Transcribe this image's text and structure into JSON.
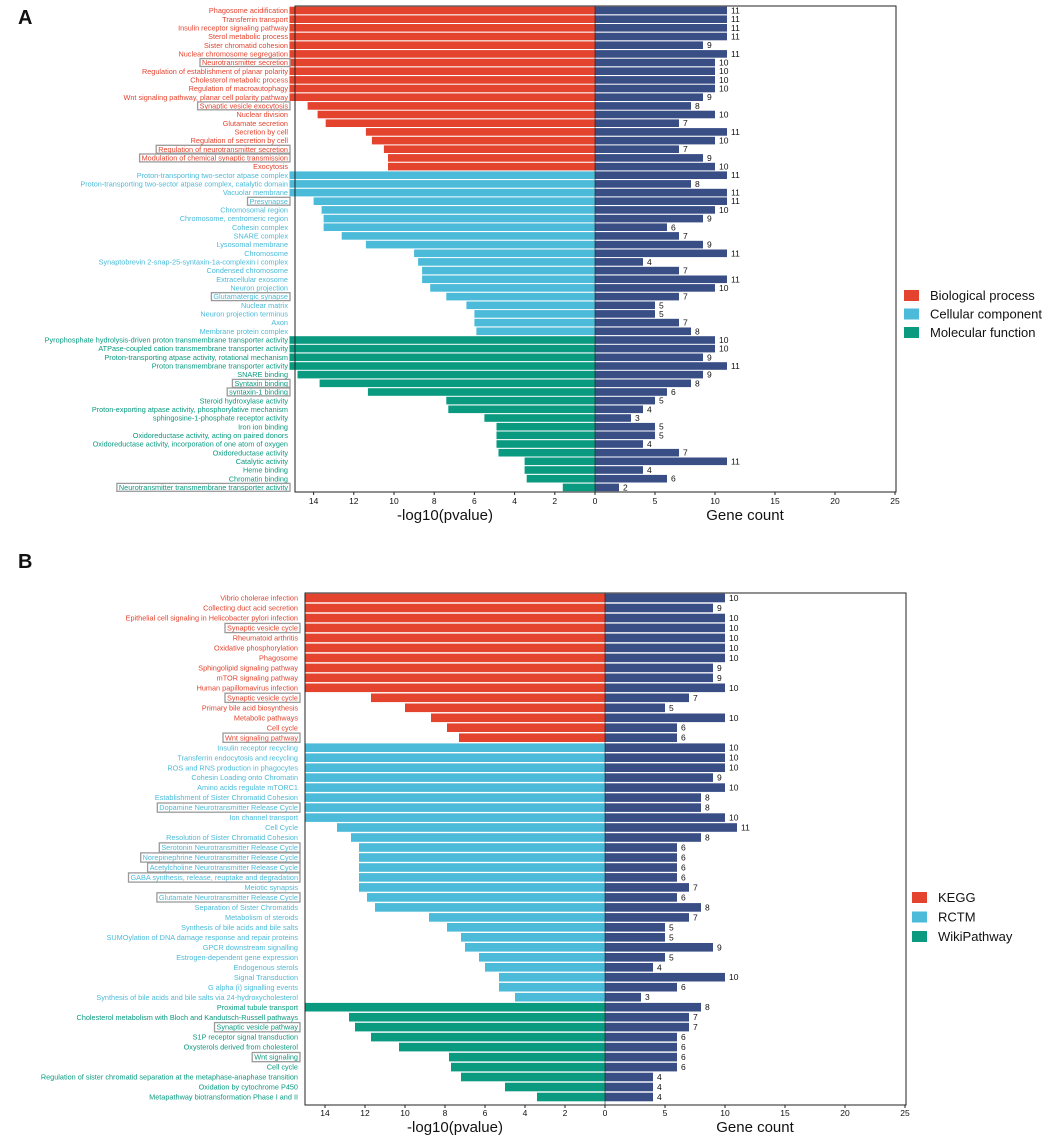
{
  "colors": {
    "bp": "#E4432E",
    "cc": "#4BBBD9",
    "mf": "#0A9A7F",
    "count": "#3A4E86",
    "box": "#9A9A9A",
    "axis": "#222222",
    "text": "#111111"
  },
  "chart_data": [
    {
      "type": "bar",
      "panel_label": "A",
      "xlabel_left": "-log10(pvalue)",
      "xlabel_right": "Gene count",
      "left_ticks": [
        "14",
        "12",
        "10",
        "8",
        "6",
        "4",
        "2",
        "0"
      ],
      "right_ticks": [
        "0",
        "5",
        "10",
        "15",
        "20",
        "25"
      ],
      "pvalue_axis_range": [
        0,
        15
      ],
      "count_axis_range": [
        0,
        25
      ],
      "legend": [
        {
          "key": "bp",
          "label": "Biological process"
        },
        {
          "key": "cc",
          "label": "Cellular component"
        },
        {
          "key": "mf",
          "label": "Molecular function"
        }
      ],
      "rows": [
        {
          "label": "Phagosome acidification",
          "group": "bp",
          "logp": 15.2,
          "count": 11
        },
        {
          "label": "Transferrin transport",
          "group": "bp",
          "logp": 15.2,
          "count": 11
        },
        {
          "label": "Insulin receptor signaling pathway",
          "group": "bp",
          "logp": 15.2,
          "count": 11
        },
        {
          "label": "Sterol metabolic process",
          "group": "bp",
          "logp": 15.2,
          "count": 11
        },
        {
          "label": "Sister chromatid cohesion",
          "group": "bp",
          "logp": 15.2,
          "count": 9
        },
        {
          "label": "Nuclear chromosome segregation",
          "group": "bp",
          "logp": 15.2,
          "count": 11
        },
        {
          "label": "Neurotransmitter secretion",
          "group": "bp",
          "logp": 15.2,
          "count": 10,
          "boxed": true
        },
        {
          "label": "Regulation of establishment of planar polarity",
          "group": "bp",
          "logp": 15.2,
          "count": 10
        },
        {
          "label": "Cholesterol metabolic process",
          "group": "bp",
          "logp": 15.2,
          "count": 10
        },
        {
          "label": "Regulation of macroautophagy",
          "group": "bp",
          "logp": 15.2,
          "count": 10
        },
        {
          "label": "Wnt signaling pathway, planar cell polarity pathway",
          "group": "bp",
          "logp": 15.2,
          "count": 9
        },
        {
          "label": "Synaptic vesicle exocytosis",
          "group": "bp",
          "logp": 14.3,
          "count": 8,
          "boxed": true
        },
        {
          "label": "Nuclear division",
          "group": "bp",
          "logp": 13.8,
          "count": 10
        },
        {
          "label": "Glutamate secretion",
          "group": "bp",
          "logp": 13.4,
          "count": 7
        },
        {
          "label": "Secretion by cell",
          "group": "bp",
          "logp": 11.4,
          "count": 11
        },
        {
          "label": "Regulation of secretion by cell",
          "group": "bp",
          "logp": 11.1,
          "count": 10
        },
        {
          "label": "Regulation of neurotransmitter secretion",
          "group": "bp",
          "logp": 10.5,
          "count": 7,
          "boxed": true
        },
        {
          "label": "Modulation of chemical synaptic transmission",
          "group": "bp",
          "logp": 10.3,
          "count": 9,
          "boxed": true
        },
        {
          "label": "Exocytosis",
          "group": "bp",
          "logp": 10.3,
          "count": 10
        },
        {
          "label": "Proton-transporting two-sector atpase complex",
          "group": "cc",
          "logp": 15.2,
          "count": 11
        },
        {
          "label": "Proton-transporting two-sector atpase complex, catalytic domain",
          "group": "cc",
          "logp": 15.2,
          "count": 8
        },
        {
          "label": "Vacuolar membrane",
          "group": "cc",
          "logp": 15.2,
          "count": 11
        },
        {
          "label": "Presynapse",
          "group": "cc",
          "logp": 14.0,
          "count": 11,
          "boxed": true
        },
        {
          "label": "Chromosomal region",
          "group": "cc",
          "logp": 13.6,
          "count": 10
        },
        {
          "label": "Chromosome, centromeric region",
          "group": "cc",
          "logp": 13.5,
          "count": 9
        },
        {
          "label": "Cohesin complex",
          "group": "cc",
          "logp": 13.5,
          "count": 6
        },
        {
          "label": "SNARE complex",
          "group": "cc",
          "logp": 12.6,
          "count": 7
        },
        {
          "label": "Lysosomal membrane",
          "group": "cc",
          "logp": 11.4,
          "count": 9
        },
        {
          "label": "Chromosome",
          "group": "cc",
          "logp": 9.0,
          "count": 11
        },
        {
          "label": "Synaptobrevin 2-snap-25-syntaxin-1a-complexin i complex",
          "group": "cc",
          "logp": 8.8,
          "count": 4
        },
        {
          "label": "Condensed chromosome",
          "group": "cc",
          "logp": 8.6,
          "count": 7
        },
        {
          "label": "Extracellular exosome",
          "group": "cc",
          "logp": 8.6,
          "count": 11
        },
        {
          "label": "Neuron projection",
          "group": "cc",
          "logp": 8.2,
          "count": 10
        },
        {
          "label": "Glutamatergic synapse",
          "group": "cc",
          "logp": 7.4,
          "count": 7,
          "boxed": true
        },
        {
          "label": "Nuclear matrix",
          "group": "cc",
          "logp": 6.4,
          "count": 5
        },
        {
          "label": "Neuron projection terminus",
          "group": "cc",
          "logp": 6.0,
          "count": 5
        },
        {
          "label": "Axon",
          "group": "cc",
          "logp": 6.0,
          "count": 7
        },
        {
          "label": "Membrane protein complex",
          "group": "cc",
          "logp": 5.9,
          "count": 8
        },
        {
          "label": "Pyrophosphate hydrolysis-driven proton transmembrane transporter activity",
          "group": "mf",
          "logp": 15.2,
          "count": 10
        },
        {
          "label": "ATPase-coupled cation transmembrane transporter activity",
          "group": "mf",
          "logp": 15.2,
          "count": 10
        },
        {
          "label": "Proton-transporting atpase activity, rotational mechanism",
          "group": "mf",
          "logp": 15.2,
          "count": 9
        },
        {
          "label": "Proton transmembrane transporter activity",
          "group": "mf",
          "logp": 15.2,
          "count": 11
        },
        {
          "label": "SNARE binding",
          "group": "mf",
          "logp": 14.8,
          "count": 9
        },
        {
          "label": "Syntaxin binding",
          "group": "mf",
          "logp": 13.7,
          "count": 8,
          "boxed": true
        },
        {
          "label": "syntaxin-1 binding",
          "group": "mf",
          "logp": 11.3,
          "count": 6,
          "boxed": true
        },
        {
          "label": "Steroid hydroxylase activity",
          "group": "mf",
          "logp": 7.4,
          "count": 5
        },
        {
          "label": "Proton-exporting atpase activity, phosphorylative mechanism",
          "group": "mf",
          "logp": 7.3,
          "count": 4
        },
        {
          "label": "sphingosine-1-phosphate receptor activity",
          "group": "mf",
          "logp": 5.5,
          "count": 3
        },
        {
          "label": "Iron ion binding",
          "group": "mf",
          "logp": 4.9,
          "count": 5
        },
        {
          "label": "Oxidoreductase activity, acting on paired donors",
          "group": "mf",
          "logp": 4.9,
          "count": 5
        },
        {
          "label": "Oxidoreductase activity, incorporation of one atom of oxygen",
          "group": "mf",
          "logp": 4.9,
          "count": 4
        },
        {
          "label": "Oxidoreductase activity",
          "group": "mf",
          "logp": 4.8,
          "count": 7
        },
        {
          "label": "Catalytic activity",
          "group": "mf",
          "logp": 3.5,
          "count": 11
        },
        {
          "label": "Heme binding",
          "group": "mf",
          "logp": 3.5,
          "count": 4
        },
        {
          "label": "Chromatin binding",
          "group": "mf",
          "logp": 3.4,
          "count": 6
        },
        {
          "label": "Neurotransmitter transmembrane transporter activity",
          "group": "mf",
          "logp": 1.6,
          "count": 2,
          "boxed": true
        }
      ]
    },
    {
      "type": "bar",
      "panel_label": "B",
      "xlabel_left": "-log10(pvalue)",
      "xlabel_right": "Gene count",
      "left_ticks": [
        "14",
        "12",
        "10",
        "8",
        "6",
        "4",
        "2",
        "0"
      ],
      "right_ticks": [
        "0",
        "5",
        "10",
        "15",
        "20",
        "25"
      ],
      "pvalue_axis_range": [
        0,
        15
      ],
      "count_axis_range": [
        0,
        25
      ],
      "legend": [
        {
          "key": "bp",
          "label": "KEGG"
        },
        {
          "key": "cc",
          "label": "RCTM"
        },
        {
          "key": "mf",
          "label": "WikiPathway"
        }
      ],
      "rows": [
        {
          "label": "Vibrio cholerae infection",
          "group": "bp",
          "logp": 15.0,
          "count": 10
        },
        {
          "label": "Collecting duct acid secretion",
          "group": "bp",
          "logp": 15.0,
          "count": 9
        },
        {
          "label": "Epithelial cell signaling in Helicobacter pylori infection",
          "group": "bp",
          "logp": 15.0,
          "count": 10
        },
        {
          "label": "Synaptic vesicle cycle",
          "group": "bp",
          "logp": 15.0,
          "count": 10,
          "boxed": true
        },
        {
          "label": "Rheumatoid arthritis",
          "group": "bp",
          "logp": 15.0,
          "count": 10
        },
        {
          "label": "Oxidative phosphorylation",
          "group": "bp",
          "logp": 15.0,
          "count": 10
        },
        {
          "label": "Phagosome",
          "group": "bp",
          "logp": 15.0,
          "count": 10
        },
        {
          "label": "Sphingolipid signaling pathway",
          "group": "bp",
          "logp": 15.0,
          "count": 9
        },
        {
          "label": "mTOR signaling pathway",
          "group": "bp",
          "logp": 15.0,
          "count": 9
        },
        {
          "label": "Human papillomavirus infection",
          "group": "bp",
          "logp": 15.0,
          "count": 10
        },
        {
          "label": "Synaptic vesicle cycle",
          "group": "bp",
          "logp": 11.7,
          "count": 7,
          "boxed": true
        },
        {
          "label": "Primary bile acid biosynthesis",
          "group": "bp",
          "logp": 10.0,
          "count": 5
        },
        {
          "label": "Metabolic pathways",
          "group": "bp",
          "logp": 8.7,
          "count": 10
        },
        {
          "label": "Cell cycle",
          "group": "bp",
          "logp": 7.9,
          "count": 6
        },
        {
          "label": "Wnt signaling pathway",
          "group": "bp",
          "logp": 7.3,
          "count": 6,
          "boxed": true
        },
        {
          "label": "Insulin receptor recycling",
          "group": "cc",
          "logp": 15.0,
          "count": 10
        },
        {
          "label": "Transferrin endocytosis and recycling",
          "group": "cc",
          "logp": 15.0,
          "count": 10
        },
        {
          "label": "ROS and RNS production in phagocytes",
          "group": "cc",
          "logp": 15.0,
          "count": 10
        },
        {
          "label": "Cohesin Loading onto Chromatin",
          "group": "cc",
          "logp": 15.0,
          "count": 9
        },
        {
          "label": "Amino acids regulate mTORC1",
          "group": "cc",
          "logp": 15.0,
          "count": 10
        },
        {
          "label": "Establishment of Sister Chromatid Cohesion",
          "group": "cc",
          "logp": 15.0,
          "count": 8
        },
        {
          "label": "Dopamine Neurotransmitter Release Cycle",
          "group": "cc",
          "logp": 15.0,
          "count": 8,
          "boxed": true
        },
        {
          "label": "Ion channel transport",
          "group": "cc",
          "logp": 15.0,
          "count": 10
        },
        {
          "label": "Cell Cycle",
          "group": "cc",
          "logp": 13.4,
          "count": 11
        },
        {
          "label": "Resolution of Sister Chromatid Cohesion",
          "group": "cc",
          "logp": 12.7,
          "count": 8
        },
        {
          "label": "Serotonin Neurotransmitter Release Cycle",
          "group": "cc",
          "logp": 12.3,
          "count": 6,
          "boxed": true
        },
        {
          "label": "Norepinephrine Neurotransmitter Release Cycle",
          "group": "cc",
          "logp": 12.3,
          "count": 6,
          "boxed": true
        },
        {
          "label": "Acetylcholine Neurotransmitter Release Cycle",
          "group": "cc",
          "logp": 12.3,
          "count": 6,
          "boxed": true
        },
        {
          "label": "GABA synthesis, release, reuptake and degradation",
          "group": "cc",
          "logp": 12.3,
          "count": 6,
          "boxed": true
        },
        {
          "label": "Meiotic synapsis",
          "group": "cc",
          "logp": 12.3,
          "count": 7
        },
        {
          "label": "Glutamate Neurotransmitter Release Cycle",
          "group": "cc",
          "logp": 11.9,
          "count": 6,
          "boxed": true
        },
        {
          "label": "Separation of Sister Chromatids",
          "group": "cc",
          "logp": 11.5,
          "count": 8
        },
        {
          "label": "Metabolism of steroids",
          "group": "cc",
          "logp": 8.8,
          "count": 7
        },
        {
          "label": "Synthesis of bile acids and bile salts",
          "group": "cc",
          "logp": 7.9,
          "count": 5
        },
        {
          "label": "SUMOylation of DNA damage response and repair proteins",
          "group": "cc",
          "logp": 7.2,
          "count": 5
        },
        {
          "label": "GPCR downstream signalling",
          "group": "cc",
          "logp": 7.0,
          "count": 9
        },
        {
          "label": "Estrogen-dependent gene expression",
          "group": "cc",
          "logp": 6.3,
          "count": 5
        },
        {
          "label": "Endogenous sterols",
          "group": "cc",
          "logp": 6.0,
          "count": 4
        },
        {
          "label": "Signal Transduction",
          "group": "cc",
          "logp": 5.3,
          "count": 10
        },
        {
          "label": "G alpha (i) signalling events",
          "group": "cc",
          "logp": 5.3,
          "count": 6
        },
        {
          "label": "Synthesis of bile acids and bile salts via 24-hydroxycholesterol",
          "group": "cc",
          "logp": 4.5,
          "count": 3
        },
        {
          "label": "Proximal tubule transport",
          "group": "mf",
          "logp": 15.0,
          "count": 8
        },
        {
          "label": "Cholesterol metabolism with Bloch and Kandutsch-Russell pathways",
          "group": "mf",
          "logp": 12.8,
          "count": 7
        },
        {
          "label": "Synaptic vesicle pathway",
          "group": "mf",
          "logp": 12.5,
          "count": 7,
          "boxed": true
        },
        {
          "label": "S1P receptor signal transduction",
          "group": "mf",
          "logp": 11.7,
          "count": 6
        },
        {
          "label": "Oxysterols derived from cholesterol",
          "group": "mf",
          "logp": 10.3,
          "count": 6
        },
        {
          "label": "Wnt signaling",
          "group": "mf",
          "logp": 7.8,
          "count": 6,
          "boxed": true
        },
        {
          "label": "Cell cycle",
          "group": "mf",
          "logp": 7.7,
          "count": 6
        },
        {
          "label": "Regulation of sister chromatid separation at the metaphase-anaphase transition",
          "group": "mf",
          "logp": 7.2,
          "count": 4
        },
        {
          "label": "Oxidation by cytochrome P450",
          "group": "mf",
          "logp": 5.0,
          "count": 4
        },
        {
          "label": "Metapathway biotransformation Phase I and II",
          "group": "mf",
          "logp": 3.4,
          "count": 4
        }
      ]
    }
  ]
}
